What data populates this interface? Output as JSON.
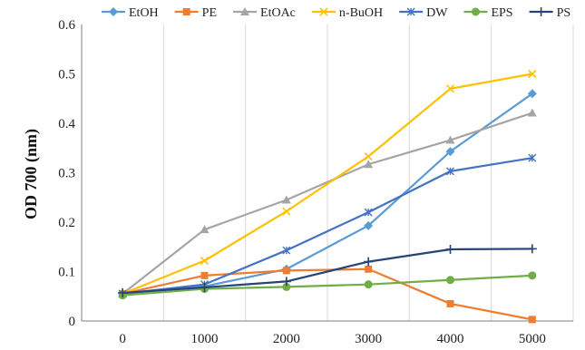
{
  "chart_data": {
    "type": "line",
    "title": "",
    "xlabel": "",
    "ylabel": "OD 700 (nm)",
    "x": [
      0,
      1000,
      2000,
      3000,
      4000,
      5000
    ],
    "x_tick_labels": [
      "0",
      "1000",
      "2000",
      "3000",
      "4000",
      "5000"
    ],
    "ylim": [
      0,
      0.6
    ],
    "y_tick_labels": [
      "0",
      "0.1",
      "0.2",
      "0.3",
      "0.4",
      "0.5",
      "0.6"
    ],
    "grid": "vertical",
    "legend_position": "top",
    "series": [
      {
        "name": "EtOH",
        "color": "#5b9bd5",
        "marker": "diamond",
        "values": [
          0.055,
          0.07,
          0.105,
          0.193,
          0.343,
          0.46
        ]
      },
      {
        "name": "PE",
        "color": "#ed7d31",
        "marker": "square",
        "values": [
          0.055,
          0.092,
          0.102,
          0.105,
          0.035,
          0.003
        ]
      },
      {
        "name": "EtOAc",
        "color": "#a5a5a5",
        "marker": "triangle",
        "values": [
          0.055,
          0.185,
          0.245,
          0.317,
          0.366,
          0.421
        ]
      },
      {
        "name": "n-BuOH",
        "color": "#ffc000",
        "marker": "x",
        "values": [
          0.055,
          0.122,
          0.222,
          0.333,
          0.47,
          0.5
        ]
      },
      {
        "name": "DW",
        "color": "#4472c4",
        "marker": "star",
        "values": [
          0.055,
          0.074,
          0.143,
          0.22,
          0.303,
          0.33
        ]
      },
      {
        "name": "EPS",
        "color": "#70ad47",
        "marker": "circle",
        "values": [
          0.052,
          0.065,
          0.069,
          0.074,
          0.083,
          0.092
        ]
      },
      {
        "name": "PS",
        "color": "#264478",
        "marker": "plus",
        "values": [
          0.057,
          0.068,
          0.08,
          0.12,
          0.145,
          0.146
        ]
      }
    ]
  }
}
